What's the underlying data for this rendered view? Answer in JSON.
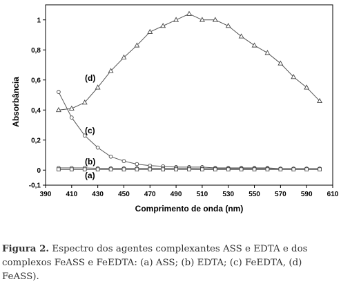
{
  "chart_data": {
    "type": "line",
    "xlabel": "Comprimento de onda (nm)",
    "ylabel": "Absorbância",
    "xlim": [
      390,
      610
    ],
    "ylim": [
      -0.1,
      1.1
    ],
    "xticks": [
      390,
      410,
      430,
      450,
      470,
      490,
      510,
      530,
      550,
      570,
      590,
      610
    ],
    "xtick_labels": [
      "390",
      "410",
      "430",
      "450",
      "470",
      "490",
      "510",
      "530",
      "550",
      "570",
      "590",
      "610"
    ],
    "yticks": [
      -0.1,
      0,
      0.2,
      0.4,
      0.6,
      0.8,
      1
    ],
    "ytick_labels": [
      "-0,1",
      "0",
      "0,2",
      "0,4",
      "0,6",
      "0,8",
      "1"
    ],
    "grid": false,
    "series": [
      {
        "name": "(d)",
        "marker": "triangle",
        "x": [
          400,
          410,
          420,
          430,
          440,
          450,
          460,
          470,
          480,
          490,
          500,
          510,
          520,
          530,
          540,
          550,
          560,
          570,
          580,
          590,
          600
        ],
        "y": [
          0.4,
          0.41,
          0.45,
          0.55,
          0.66,
          0.75,
          0.83,
          0.92,
          0.96,
          1.0,
          1.04,
          1.0,
          1.0,
          0.96,
          0.89,
          0.83,
          0.78,
          0.71,
          0.62,
          0.55,
          0.46
        ]
      },
      {
        "name": "(c)",
        "marker": "circle",
        "x": [
          400,
          410,
          420,
          430,
          440,
          450,
          460,
          470,
          480,
          490,
          500,
          510,
          520,
          530,
          540,
          550,
          560,
          570,
          580,
          590,
          600
        ],
        "y": [
          0.52,
          0.35,
          0.23,
          0.15,
          0.09,
          0.06,
          0.04,
          0.03,
          0.025,
          0.02,
          0.02,
          0.02,
          0.015,
          0.015,
          0.015,
          0.015,
          0.015,
          0.01,
          0.01,
          0.01,
          0.01
        ]
      },
      {
        "name": "(b)",
        "marker": "circle",
        "x": [
          400,
          410,
          420,
          430,
          440,
          450,
          460,
          470,
          480,
          490,
          500,
          510,
          520,
          530,
          540,
          550,
          560,
          570,
          580,
          590,
          600
        ],
        "y": [
          0.015,
          0.015,
          0.015,
          0.012,
          0.012,
          0.012,
          0.012,
          0.012,
          0.012,
          0.012,
          0.012,
          0.01,
          0.01,
          0.01,
          0.01,
          0.01,
          0.01,
          0.01,
          0.01,
          0.01,
          0.01
        ]
      },
      {
        "name": "(a)",
        "marker": "square",
        "x": [
          400,
          410,
          420,
          430,
          440,
          450,
          460,
          470,
          480,
          490,
          500,
          510,
          520,
          530,
          540,
          550,
          560,
          570,
          580,
          590,
          600
        ],
        "y": [
          0.005,
          0.005,
          0.005,
          0.005,
          0.005,
          0.005,
          0.005,
          0.005,
          0.005,
          0.005,
          0.005,
          0.005,
          0.005,
          0.005,
          0.005,
          0.005,
          0.005,
          0.005,
          0.005,
          0.005,
          0.005
        ]
      }
    ]
  },
  "caption": {
    "number": "Figura 2.",
    "text": " Espectro dos agentes complexantes ASS e EDTA e dos complexos FeASS e FeEDTA: (a) ASS; (b) EDTA; (c) FeEDTA, (d) FeASS)."
  }
}
